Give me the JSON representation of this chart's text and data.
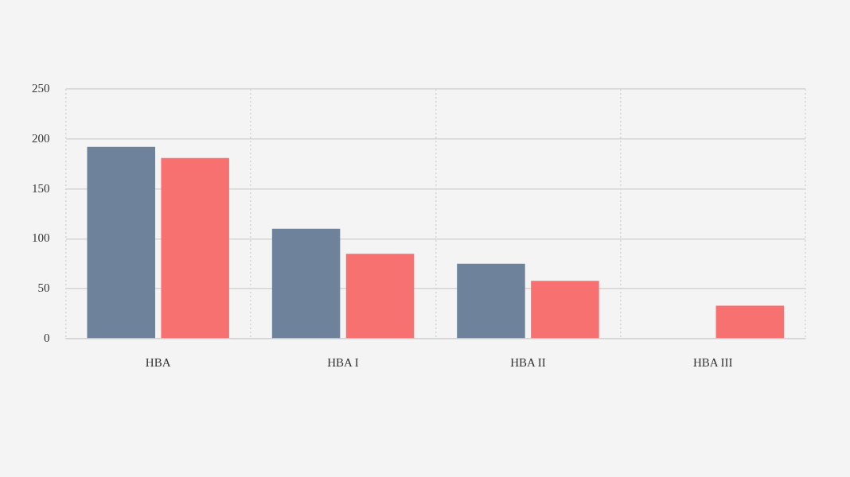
{
  "chart_data": {
    "type": "bar",
    "categories": [
      "HBA",
      "HBA I",
      "HBA II",
      "HBA III"
    ],
    "series": [
      {
        "color": "#6e829c",
        "values": [
          192,
          110,
          75,
          0
        ]
      },
      {
        "color": "#f87171",
        "values": [
          181,
          85,
          58,
          33
        ]
      }
    ],
    "ylim": [
      0,
      250
    ],
    "yticks": [
      0,
      50,
      100,
      150,
      200,
      250
    ],
    "grid": true,
    "legend": false
  }
}
